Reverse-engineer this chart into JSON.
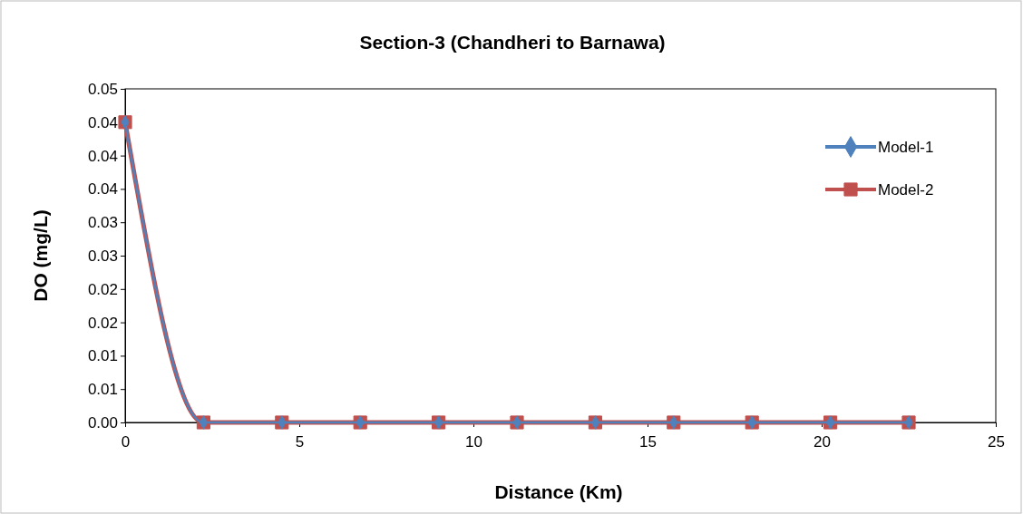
{
  "chart_data": {
    "type": "line",
    "title": "Section-3 (Chandheri to Barnawa)",
    "xlabel": "Distance (Km)",
    "ylabel": "DO (mg/L)",
    "x": [
      0,
      2.25,
      4.5,
      6.75,
      9,
      11.25,
      13.5,
      15.75,
      18,
      20.25,
      22.5
    ],
    "series": [
      {
        "name": "Model-1",
        "color": "#4f81bd",
        "marker": "diamond",
        "values": [
          0.045,
          0,
          0,
          0,
          0,
          0,
          0,
          0,
          0,
          0,
          0
        ]
      },
      {
        "name": "Model-2",
        "color": "#c0504d",
        "marker": "square",
        "values": [
          0.045,
          0,
          0,
          0,
          0,
          0,
          0,
          0,
          0,
          0,
          0
        ]
      }
    ],
    "xlim": [
      0,
      25
    ],
    "xticks": [
      0,
      5,
      10,
      15,
      20,
      25
    ],
    "ylim": [
      0,
      0.05
    ],
    "yticks": [
      {
        "value": 0,
        "label": "0.00"
      },
      {
        "value": 0.005,
        "label": "0.01"
      },
      {
        "value": 0.01,
        "label": "0.01"
      },
      {
        "value": 0.015,
        "label": "0.02"
      },
      {
        "value": 0.02,
        "label": "0.02"
      },
      {
        "value": 0.025,
        "label": "0.03"
      },
      {
        "value": 0.03,
        "label": "0.03"
      },
      {
        "value": 0.035,
        "label": "0.04"
      },
      {
        "value": 0.04,
        "label": "0.04"
      },
      {
        "value": 0.045,
        "label": "0.04"
      },
      {
        "value": 0.05,
        "label": "0.05"
      }
    ],
    "grid": false,
    "legend": "top right",
    "line_style": "solid"
  }
}
